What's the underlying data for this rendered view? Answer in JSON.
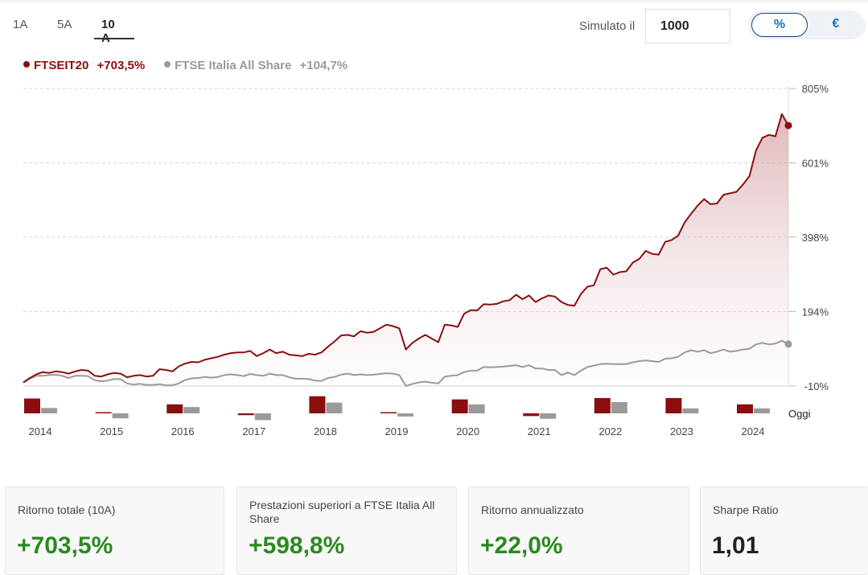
{
  "tabs": [
    {
      "label": "1A"
    },
    {
      "label": "5A"
    },
    {
      "label": "10 A",
      "active": true
    }
  ],
  "simulator": {
    "label": "Simulato il",
    "value": "1000"
  },
  "toggle": {
    "percent_label": "%",
    "euro_label": "€",
    "active": "percent"
  },
  "colors": {
    "primary": "#8b0e0e",
    "benchmark": "#9a9a9a",
    "positive": "#2a8a1f",
    "neutral": "#222222"
  },
  "legend": [
    {
      "name": "FTSEIT20",
      "value": "+703,5%"
    },
    {
      "name": "FTSE Italia All Share",
      "value": "+104,7%"
    }
  ],
  "chart_data": {
    "type": "line",
    "y_tick_labels": [
      "805%",
      "601%",
      "398%",
      "194%",
      "-10%"
    ],
    "y_ticks": [
      805,
      601,
      398,
      194,
      -10
    ],
    "ylim": [
      -10,
      805
    ],
    "x_tick_labels": [
      "2014",
      "2015",
      "2016",
      "2017",
      "2018",
      "2019",
      "2020",
      "2021",
      "2022",
      "2023",
      "2024"
    ],
    "end_label": "Oggi",
    "grid": "horizontal-dashed",
    "series": [
      {
        "name": "FTSEIT20",
        "end_value": 703.5,
        "points": [
          [
            2014.0,
            0
          ],
          [
            2014.1,
            12
          ],
          [
            2014.2,
            22
          ],
          [
            2014.3,
            28
          ],
          [
            2014.4,
            26
          ],
          [
            2014.5,
            30
          ],
          [
            2014.6,
            28
          ],
          [
            2014.7,
            24
          ],
          [
            2014.8,
            30
          ],
          [
            2014.9,
            34
          ],
          [
            2015.0,
            32
          ],
          [
            2015.1,
            18
          ],
          [
            2015.2,
            16
          ],
          [
            2015.3,
            22
          ],
          [
            2015.4,
            26
          ],
          [
            2015.5,
            24
          ],
          [
            2015.6,
            14
          ],
          [
            2015.7,
            18
          ],
          [
            2015.8,
            20
          ],
          [
            2015.9,
            16
          ],
          [
            2016.0,
            18
          ],
          [
            2016.1,
            36
          ],
          [
            2016.2,
            34
          ],
          [
            2016.3,
            30
          ],
          [
            2016.4,
            44
          ],
          [
            2016.5,
            52
          ],
          [
            2016.6,
            56
          ],
          [
            2016.7,
            55
          ],
          [
            2016.8,
            62
          ],
          [
            2016.9,
            66
          ],
          [
            2017.0,
            70
          ],
          [
            2017.1,
            76
          ],
          [
            2017.2,
            80
          ],
          [
            2017.3,
            82
          ],
          [
            2017.4,
            82
          ],
          [
            2017.5,
            86
          ],
          [
            2017.6,
            72
          ],
          [
            2017.7,
            80
          ],
          [
            2017.8,
            90
          ],
          [
            2017.9,
            80
          ],
          [
            2018.0,
            84
          ],
          [
            2018.1,
            76
          ],
          [
            2018.2,
            74
          ],
          [
            2018.3,
            72
          ],
          [
            2018.4,
            78
          ],
          [
            2018.5,
            76
          ],
          [
            2018.6,
            82
          ],
          [
            2018.7,
            98
          ],
          [
            2018.8,
            112
          ],
          [
            2018.9,
            128
          ],
          [
            2019.0,
            130
          ],
          [
            2019.1,
            126
          ],
          [
            2019.2,
            140
          ],
          [
            2019.3,
            136
          ],
          [
            2019.4,
            138
          ],
          [
            2019.5,
            148
          ],
          [
            2019.6,
            158
          ],
          [
            2019.7,
            154
          ],
          [
            2019.8,
            148
          ],
          [
            2019.9,
            90
          ],
          [
            2020.0,
            108
          ],
          [
            2020.1,
            120
          ],
          [
            2020.2,
            130
          ],
          [
            2020.3,
            120
          ],
          [
            2020.4,
            110
          ],
          [
            2020.5,
            158
          ],
          [
            2020.6,
            156
          ],
          [
            2020.7,
            152
          ],
          [
            2020.8,
            188
          ],
          [
            2020.9,
            198
          ],
          [
            2021.0,
            197
          ],
          [
            2021.1,
            214
          ],
          [
            2021.2,
            213
          ],
          [
            2021.3,
            215
          ],
          [
            2021.4,
            222
          ],
          [
            2021.5,
            225
          ],
          [
            2021.6,
            240
          ],
          [
            2021.7,
            228
          ],
          [
            2021.8,
            238
          ],
          [
            2021.9,
            220
          ],
          [
            2022.0,
            230
          ],
          [
            2022.1,
            238
          ],
          [
            2022.2,
            235
          ],
          [
            2022.3,
            220
          ],
          [
            2022.4,
            212
          ],
          [
            2022.5,
            210
          ],
          [
            2022.6,
            242
          ],
          [
            2022.7,
            262
          ],
          [
            2022.8,
            266
          ],
          [
            2022.9,
            310
          ],
          [
            2023.0,
            314
          ],
          [
            2023.1,
            295
          ],
          [
            2023.2,
            302
          ],
          [
            2023.3,
            304
          ],
          [
            2023.4,
            328
          ],
          [
            2023.5,
            338
          ],
          [
            2023.6,
            360
          ],
          [
            2023.7,
            352
          ],
          [
            2023.8,
            350
          ],
          [
            2023.9,
            385
          ],
          [
            2024.0,
            390
          ],
          [
            2024.1,
            402
          ],
          [
            2024.2,
            438
          ],
          [
            2024.3,
            462
          ],
          [
            2024.4,
            484
          ],
          [
            2024.5,
            502
          ],
          [
            2024.6,
            488
          ],
          [
            2024.7,
            490
          ],
          [
            2024.8,
            514
          ],
          [
            2024.9,
            518
          ],
          [
            2025.0,
            522
          ],
          [
            2025.1,
            542
          ],
          [
            2025.2,
            565
          ],
          [
            2025.3,
            635
          ],
          [
            2025.4,
            670
          ],
          [
            2025.5,
            678
          ],
          [
            2025.6,
            674
          ],
          [
            2025.7,
            735
          ],
          [
            2025.8,
            703.5
          ]
        ]
      },
      {
        "name": "FTSE Italia All Share",
        "end_value": 104.7,
        "points": [
          [
            2014.0,
            0
          ],
          [
            2014.1,
            10
          ],
          [
            2014.2,
            18
          ],
          [
            2014.3,
            18
          ],
          [
            2014.4,
            20
          ],
          [
            2014.5,
            21
          ],
          [
            2014.6,
            18
          ],
          [
            2014.7,
            12
          ],
          [
            2014.8,
            18
          ],
          [
            2014.9,
            18
          ],
          [
            2015.0,
            17
          ],
          [
            2015.1,
            6
          ],
          [
            2015.2,
            3
          ],
          [
            2015.3,
            5
          ],
          [
            2015.4,
            9
          ],
          [
            2015.5,
            9
          ],
          [
            2015.6,
            -3
          ],
          [
            2015.7,
            -6
          ],
          [
            2015.8,
            -4
          ],
          [
            2015.9,
            -7
          ],
          [
            2016.0,
            -7
          ],
          [
            2016.1,
            -5
          ],
          [
            2016.2,
            -8
          ],
          [
            2016.3,
            -8
          ],
          [
            2016.4,
            -3
          ],
          [
            2016.5,
            7
          ],
          [
            2016.6,
            11
          ],
          [
            2016.7,
            12
          ],
          [
            2016.8,
            15
          ],
          [
            2016.9,
            13
          ],
          [
            2017.0,
            15
          ],
          [
            2017.1,
            20
          ],
          [
            2017.2,
            22
          ],
          [
            2017.3,
            20
          ],
          [
            2017.4,
            17
          ],
          [
            2017.5,
            23
          ],
          [
            2017.6,
            20
          ],
          [
            2017.7,
            18
          ],
          [
            2017.8,
            24
          ],
          [
            2017.9,
            20
          ],
          [
            2018.0,
            20
          ],
          [
            2018.1,
            14
          ],
          [
            2018.2,
            10
          ],
          [
            2018.3,
            10
          ],
          [
            2018.4,
            9
          ],
          [
            2018.5,
            5
          ],
          [
            2018.6,
            4
          ],
          [
            2018.7,
            12
          ],
          [
            2018.8,
            15
          ],
          [
            2018.9,
            21
          ],
          [
            2019.0,
            24
          ],
          [
            2019.1,
            20
          ],
          [
            2019.2,
            22
          ],
          [
            2019.3,
            20
          ],
          [
            2019.4,
            21
          ],
          [
            2019.5,
            23
          ],
          [
            2019.6,
            25
          ],
          [
            2019.7,
            24
          ],
          [
            2019.8,
            20
          ],
          [
            2019.9,
            -10
          ],
          [
            2020.0,
            -4
          ],
          [
            2020.1,
            0
          ],
          [
            2020.2,
            2
          ],
          [
            2020.3,
            -1
          ],
          [
            2020.4,
            -3
          ],
          [
            2020.5,
            16
          ],
          [
            2020.6,
            18
          ],
          [
            2020.7,
            20
          ],
          [
            2020.8,
            28
          ],
          [
            2020.9,
            32
          ],
          [
            2021.0,
            32
          ],
          [
            2021.1,
            42
          ],
          [
            2021.2,
            41
          ],
          [
            2021.3,
            42
          ],
          [
            2021.4,
            43
          ],
          [
            2021.5,
            45
          ],
          [
            2021.6,
            47
          ],
          [
            2021.7,
            42
          ],
          [
            2021.8,
            47
          ],
          [
            2021.9,
            38
          ],
          [
            2022.0,
            38
          ],
          [
            2022.1,
            34
          ],
          [
            2022.2,
            34
          ],
          [
            2022.3,
            20
          ],
          [
            2022.4,
            27
          ],
          [
            2022.5,
            20
          ],
          [
            2022.6,
            32
          ],
          [
            2022.7,
            42
          ],
          [
            2022.8,
            46
          ],
          [
            2022.9,
            50
          ],
          [
            2023.0,
            51
          ],
          [
            2023.1,
            50
          ],
          [
            2023.2,
            50
          ],
          [
            2023.3,
            50
          ],
          [
            2023.4,
            55
          ],
          [
            2023.5,
            58
          ],
          [
            2023.6,
            60
          ],
          [
            2023.7,
            58
          ],
          [
            2023.8,
            56
          ],
          [
            2023.9,
            65
          ],
          [
            2024.0,
            66
          ],
          [
            2024.1,
            70
          ],
          [
            2024.2,
            82
          ],
          [
            2024.3,
            88
          ],
          [
            2024.4,
            84
          ],
          [
            2024.5,
            88
          ],
          [
            2024.6,
            80
          ],
          [
            2024.7,
            84
          ],
          [
            2024.8,
            90
          ],
          [
            2024.9,
            84
          ],
          [
            2025.0,
            86
          ],
          [
            2025.1,
            90
          ],
          [
            2025.2,
            92
          ],
          [
            2025.3,
            104
          ],
          [
            2025.4,
            108
          ],
          [
            2025.5,
            104
          ],
          [
            2025.6,
            106
          ],
          [
            2025.7,
            114
          ],
          [
            2025.8,
            104.7
          ]
        ]
      }
    ],
    "annual_returns_bars": {
      "categories": [
        "2014",
        "2015",
        "2016",
        "2017",
        "2018",
        "2019",
        "2020",
        "2021",
        "2022",
        "2023",
        "2024"
      ],
      "series": [
        {
          "name": "FTSEIT20",
          "values": [
            33,
            1,
            20,
            -4,
            38,
            1,
            31,
            -6,
            34,
            34,
            20
          ]
        },
        {
          "name": "FTSE Italia All Share",
          "values": [
            12,
            -11,
            14,
            -15,
            24,
            -7,
            20,
            -12,
            25,
            11,
            11
          ]
        }
      ]
    }
  },
  "stats": [
    {
      "label": "Ritorno totale (10A)",
      "value": "+703,5%",
      "tone": "positive"
    },
    {
      "label": "Prestazioni superiori a FTSE Italia All Share",
      "value": "+598,8%",
      "tone": "positive"
    },
    {
      "label": "Ritorno annualizzato",
      "value": "+22,0%",
      "tone": "positive"
    },
    {
      "label": "Sharpe Ratio",
      "value": "1,01",
      "tone": "neutral"
    }
  ]
}
